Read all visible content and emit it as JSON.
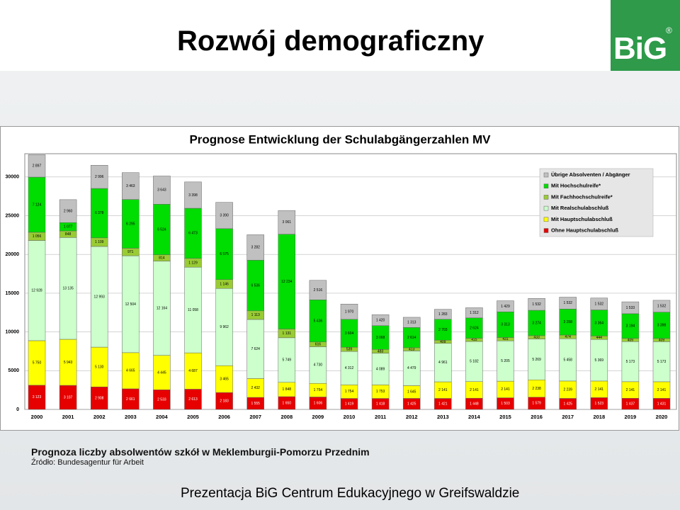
{
  "slide": {
    "title": "Rozwój demograficzny",
    "logo": {
      "text": "BiG",
      "mark": "®"
    },
    "caption": "Prognoza liczby absolwentów szkół w Meklemburgii-Pomorzu Przednim",
    "source": "Źródło: Bundesagentur für Arbeit",
    "footer": "Prezentacja BiG Centrum Edukacyjnego w Greifswaldzie"
  },
  "chart_data": {
    "type": "stacked_bar",
    "title": "Prognose Entwicklung der Schulabgängerzahlen MV",
    "categories": [
      "2000",
      "2001",
      "2002",
      "2003",
      "2004",
      "2005",
      "2006",
      "2007",
      "2008",
      "2009",
      "2010",
      "2011",
      "2012",
      "2013",
      "2014",
      "2015",
      "2016",
      "2017",
      "2018",
      "2019",
      "2020"
    ],
    "ylim": [
      0,
      33000
    ],
    "yticks": [
      0,
      5000,
      10000,
      15000,
      20000,
      25000,
      30000
    ],
    "grid": true,
    "legend": "upper right",
    "series": [
      {
        "name": "Ohne Hauptschulabschluß",
        "color": "#e60000",
        "values": [
          3123,
          3107,
          2908,
          2661,
          2533,
          2613,
          2183,
          1555,
          1650,
          1606,
          1419,
          1418,
          1425,
          1421,
          1448,
          1503,
          1579,
          1425,
          1523,
          1437,
          1431
        ],
        "value_labels": [
          "3 123",
          "3 107",
          "2 908",
          "2 661",
          "2 533",
          "2 613",
          "2 183",
          "1 555",
          "1 650",
          "1 606",
          "1 419",
          "1 418",
          "1 425",
          "1 421",
          "1 448",
          "1 503",
          "1 579",
          "1 425",
          "1 523",
          "1 437",
          "1 431"
        ]
      },
      {
        "name": "Mit Hauptschulabschluß",
        "color": "#ffff00",
        "values": [
          5750,
          5943,
          5130,
          4665,
          4445,
          4687,
          3465,
          2432,
          1848,
          1754,
          1754,
          1753,
          1645,
          2141,
          2141,
          2141,
          2238,
          2239,
          2141,
          2141,
          2141
        ],
        "value_labels": [
          "5 750",
          "5 943",
          "5 130",
          "4 665",
          "4 445",
          "4 687",
          "3 465",
          "2 432",
          "1 848",
          "1 754",
          "1 754",
          "1 753",
          "1 645",
          "2 141",
          "2 141",
          "2 141",
          "2 238",
          "2 239",
          "2 141",
          "2 141",
          "2 141"
        ]
      },
      {
        "name": "Mit Realschulabschluß",
        "color": "#ccffcc",
        "values": [
          12928,
          13135,
          12993,
          12504,
          12164,
          11058,
          9962,
          7624,
          5749,
          4730,
          4312,
          4089,
          4479,
          4961,
          5182,
          5205,
          5269,
          5458,
          5369,
          5173,
          5173
        ],
        "value_labels": [
          "12 928",
          "13 135",
          "12 993",
          "12 504",
          "12 164",
          "11 058",
          "9 962",
          "7 624",
          "5 749",
          "4 730",
          "4 312",
          "4 089",
          "4 479",
          "4 961",
          "5 182",
          "5 205",
          "5 269",
          "5 458",
          "5 369",
          "5 173",
          "5 173"
        ]
      },
      {
        "name": "Mit Fachhochschulreife*",
        "color": "#99cc33",
        "values": [
          1056,
          848,
          1109,
          971,
          814,
          1129,
          1146,
          1113,
          1131,
          616,
          539,
          483,
          413,
          409,
          415,
          431,
          433,
          474,
          444,
          409,
          409
        ],
        "value_labels": [
          "1 056",
          "848",
          "1 109",
          "971",
          "814",
          "1 129",
          "1 146",
          "1 113",
          "1 131",
          "616",
          "539",
          "483",
          "413",
          "409",
          "415",
          "431",
          "433",
          "474",
          "444",
          "409",
          "409"
        ]
      },
      {
        "name": "Mit Hochschulreife*",
        "color": "#00dd00",
        "values": [
          7124,
          1077,
          6378,
          6295,
          6524,
          6473,
          6575,
          6536,
          12234,
          5436,
          3604,
          3068,
          2614,
          2703,
          2624,
          3313,
          3274,
          3358,
          3364,
          3194,
          3398
        ],
        "value_labels": [
          "7 124",
          "1 077",
          "6 378",
          "6 295",
          "6 524",
          "6 473",
          "6 575",
          "6 536",
          "12 234",
          "5 436",
          "3 604",
          "3 068",
          "2 614",
          "2 703",
          "2 624",
          "3 313",
          "3 274",
          "3 358",
          "3 364",
          "3 194",
          "3 398"
        ]
      },
      {
        "name": "Übrige Absolventen / Abgänger",
        "color": "#c0c0c0",
        "values": [
          2897,
          2960,
          2996,
          3463,
          3643,
          3398,
          3390,
          3282,
          3061,
          2516,
          1970,
          1420,
          1313,
          1283,
          1312,
          1429,
          1532,
          1532,
          1532,
          1533,
          1532
        ],
        "value_labels": [
          "2 897",
          "2 960",
          "2 996",
          "3 463",
          "3 643",
          "3 398",
          "3 390",
          "3 282",
          "3 061",
          "2 516",
          "1 970",
          "1 420",
          "1 313",
          "1 283",
          "1 312",
          "1 429",
          "1 532",
          "1 532",
          "1 532",
          "1 533",
          "1 532"
        ]
      }
    ]
  }
}
